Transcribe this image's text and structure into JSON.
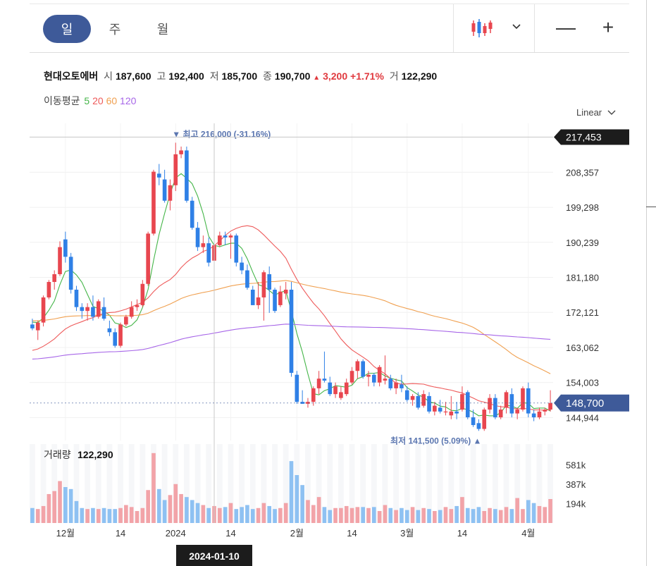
{
  "toolbar": {
    "periods": [
      "일",
      "주",
      "월"
    ],
    "active_period": "일",
    "chart_type_icon": "candlestick-icon",
    "dropdown_icon": "chevron-down-icon",
    "zoom_out_icon": "minus-icon",
    "zoom_in_icon": "plus-icon",
    "zoom_out_label": "—",
    "zoom_in_label": "+"
  },
  "quote": {
    "name": "현대오토에버",
    "open_label": "시",
    "open": "187,600",
    "high_label": "고",
    "high": "192,400",
    "low_label": "저",
    "low": "185,700",
    "close_label": "종",
    "close": "190,700",
    "change_arrow": "▲",
    "change": "3,200",
    "change_pct": "+1.71%",
    "volume_label": "거",
    "volume": "122,290"
  },
  "moving_average": {
    "label": "이동평균",
    "periods": [
      {
        "text": "5",
        "color": "#44b548"
      },
      {
        "text": "20",
        "color": "#ee5a5a"
      },
      {
        "text": "60",
        "color": "#f0a050"
      },
      {
        "text": "120",
        "color": "#a766e8"
      }
    ]
  },
  "scale_label": "Linear",
  "colors": {
    "up": "#e8464f",
    "down": "#2f80e6",
    "up_volume": "#f2a3a8",
    "down_volume": "#8ec1f2",
    "accent": "#3e5a99"
  },
  "chart_data": {
    "type": "candlestick",
    "price_axis": {
      "ticks": [
        208357,
        199298,
        190239,
        181180,
        172121,
        163062,
        154003,
        144944
      ],
      "tick_labels": [
        "208,357",
        "199,298",
        "190,239",
        "181,180",
        "172,121",
        "163,062",
        "154,003",
        "144,944"
      ]
    },
    "current_price_label": "148,700",
    "crosshair_price_label": "217,453",
    "crosshair_date": "2024-01-10",
    "high_annotation": {
      "text": "▼ 최고 216,000 (-31.16%)",
      "price": 216000
    },
    "low_annotation": {
      "text": "최저 141,500 (5.09%) ▲",
      "price": 141500
    },
    "x_axis": [
      {
        "label": "12월",
        "index": 6
      },
      {
        "label": "14",
        "index": 16
      },
      {
        "label": "2024",
        "index": 26
      },
      {
        "label": "14",
        "index": 36
      },
      {
        "label": "2월",
        "index": 48
      },
      {
        "label": "14",
        "index": 58
      },
      {
        "label": "3월",
        "index": 68
      },
      {
        "label": "14",
        "index": 78
      },
      {
        "label": "4월",
        "index": 90
      }
    ],
    "volume_title": "거래량",
    "volume_value": "122,290",
    "volume_axis": {
      "tick_labels": [
        "581k",
        "387k",
        "194k"
      ],
      "ticks": [
        581000,
        387000,
        194000
      ]
    },
    "candles": [
      [
        169000,
        170500,
        167500,
        168000
      ],
      [
        167500,
        170000,
        165000,
        169500
      ],
      [
        169500,
        176500,
        168500,
        176000
      ],
      [
        176000,
        180500,
        175500,
        180000
      ],
      [
        180000,
        183000,
        178000,
        182000
      ],
      [
        182000,
        190500,
        181500,
        189000
      ],
      [
        191000,
        193000,
        185000,
        186500
      ],
      [
        186500,
        187500,
        177000,
        178000
      ],
      [
        178000,
        179000,
        172500,
        173500
      ],
      [
        173500,
        174500,
        170500,
        172500
      ],
      [
        172500,
        174500,
        170000,
        173500
      ],
      [
        173500,
        176500,
        170000,
        171000
      ],
      [
        171000,
        175500,
        170500,
        175000
      ],
      [
        173500,
        176000,
        170000,
        170500
      ],
      [
        168000,
        170000,
        166000,
        167000
      ],
      [
        167000,
        168000,
        163000,
        163500
      ],
      [
        163500,
        169500,
        163000,
        169000
      ],
      [
        169000,
        171500,
        168500,
        171000
      ],
      [
        171000,
        175000,
        170500,
        173500
      ],
      [
        173500,
        175500,
        172500,
        174000
      ],
      [
        174000,
        180500,
        173500,
        179500
      ],
      [
        179500,
        193000,
        179000,
        192500
      ],
      [
        192500,
        209000,
        192000,
        208500
      ],
      [
        208000,
        210500,
        205000,
        207000
      ],
      [
        206500,
        209000,
        200500,
        201000
      ],
      [
        201000,
        206500,
        198500,
        205000
      ],
      [
        205000,
        216000,
        203500,
        213000
      ],
      [
        213000,
        215000,
        212000,
        214000
      ],
      [
        214000,
        215000,
        200500,
        201000
      ],
      [
        201000,
        202000,
        193500,
        194000
      ],
      [
        194000,
        195500,
        188000,
        189000
      ],
      [
        189000,
        192000,
        187500,
        190000
      ],
      [
        190000,
        191500,
        184000,
        185000
      ],
      [
        185500,
        190500,
        185000,
        189500
      ],
      [
        189500,
        193000,
        189000,
        192000
      ],
      [
        192000,
        193000,
        189500,
        191500
      ],
      [
        191500,
        192500,
        186000,
        192000
      ],
      [
        192000,
        192500,
        184000,
        185000
      ],
      [
        185000,
        186500,
        182000,
        183000
      ],
      [
        183000,
        184500,
        178000,
        178500
      ],
      [
        178000,
        179000,
        174000,
        174000
      ],
      [
        174000,
        180000,
        173000,
        176000
      ],
      [
        176000,
        183000,
        170000,
        182500
      ],
      [
        182000,
        184000,
        172000,
        178000
      ],
      [
        178000,
        178500,
        172000,
        172500
      ],
      [
        174000,
        179000,
        173500,
        177500
      ],
      [
        177000,
        180000,
        175500,
        178000
      ],
      [
        178000,
        180000,
        155500,
        156500
      ],
      [
        156000,
        157000,
        148500,
        149000
      ],
      [
        149000,
        152000,
        148500,
        148500
      ],
      [
        148500,
        150000,
        147500,
        149000
      ],
      [
        149000,
        153000,
        148000,
        152500
      ],
      [
        152500,
        157000,
        151000,
        155000
      ],
      [
        155000,
        162000,
        154000,
        154500
      ],
      [
        154000,
        155500,
        150500,
        151000
      ],
      [
        151000,
        154000,
        150000,
        153000
      ],
      [
        150000,
        153000,
        149500,
        151500
      ],
      [
        151000,
        155000,
        150500,
        154000
      ],
      [
        154000,
        158000,
        153500,
        157000
      ],
      [
        157000,
        160000,
        155000,
        159500
      ],
      [
        159500,
        160000,
        155000,
        155500
      ],
      [
        155500,
        157000,
        153000,
        156000
      ],
      [
        156000,
        156500,
        153000,
        154000
      ],
      [
        154000,
        158500,
        153000,
        158000
      ],
      [
        154500,
        161000,
        153500,
        155000
      ],
      [
        155000,
        156000,
        152000,
        152500
      ],
      [
        152500,
        155000,
        151000,
        154000
      ],
      [
        153500,
        156000,
        151500,
        152500
      ],
      [
        152000,
        153000,
        149000,
        149500
      ],
      [
        149500,
        151000,
        148000,
        150500
      ],
      [
        150500,
        151500,
        147000,
        147500
      ],
      [
        148000,
        152000,
        147500,
        151000
      ],
      [
        150500,
        151500,
        146000,
        146500
      ],
      [
        146500,
        149000,
        145500,
        148000
      ],
      [
        147500,
        149500,
        146000,
        146500
      ],
      [
        146500,
        149000,
        145500,
        146500
      ],
      [
        145500,
        150500,
        144500,
        146500
      ],
      [
        146500,
        149000,
        144500,
        146000
      ],
      [
        147000,
        153000,
        146500,
        151000
      ],
      [
        151500,
        152000,
        144500,
        145000
      ],
      [
        145000,
        147000,
        142500,
        143000
      ],
      [
        143500,
        144500,
        141500,
        142000
      ],
      [
        142000,
        147500,
        141500,
        147000
      ],
      [
        147000,
        151000,
        146000,
        150000
      ],
      [
        150000,
        151000,
        144500,
        145000
      ],
      [
        145000,
        148000,
        144500,
        147000
      ],
      [
        147500,
        152000,
        146000,
        151500
      ],
      [
        151000,
        152500,
        145000,
        146000
      ],
      [
        146000,
        147500,
        144500,
        147000
      ],
      [
        147000,
        153000,
        146500,
        152500
      ],
      [
        152500,
        154000,
        145000,
        146000
      ],
      [
        146000,
        147000,
        144000,
        145000
      ],
      [
        145000,
        147500,
        144500,
        146500
      ],
      [
        146500,
        147500,
        145500,
        147000
      ],
      [
        147000,
        152000,
        146500,
        148700
      ]
    ],
    "volumes": [
      150,
      140,
      170,
      290,
      320,
      420,
      360,
      340,
      220,
      150,
      140,
      150,
      140,
      150,
      140,
      140,
      150,
      180,
      160,
      120,
      150,
      330,
      700,
      340,
      230,
      280,
      390,
      290,
      260,
      230,
      200,
      180,
      150,
      170,
      150,
      160,
      200,
      140,
      160,
      180,
      140,
      150,
      200,
      170,
      140,
      150,
      200,
      620,
      480,
      380,
      230,
      180,
      260,
      160,
      130,
      150,
      150,
      170,
      150,
      160,
      160,
      150,
      160,
      120,
      180,
      150,
      130,
      150,
      130,
      160,
      130,
      150,
      140,
      120,
      130,
      160,
      140,
      170,
      260,
      150,
      140,
      160,
      120,
      150,
      140,
      130,
      160,
      140,
      250,
      140,
      230,
      200,
      170,
      160,
      240
    ]
  }
}
